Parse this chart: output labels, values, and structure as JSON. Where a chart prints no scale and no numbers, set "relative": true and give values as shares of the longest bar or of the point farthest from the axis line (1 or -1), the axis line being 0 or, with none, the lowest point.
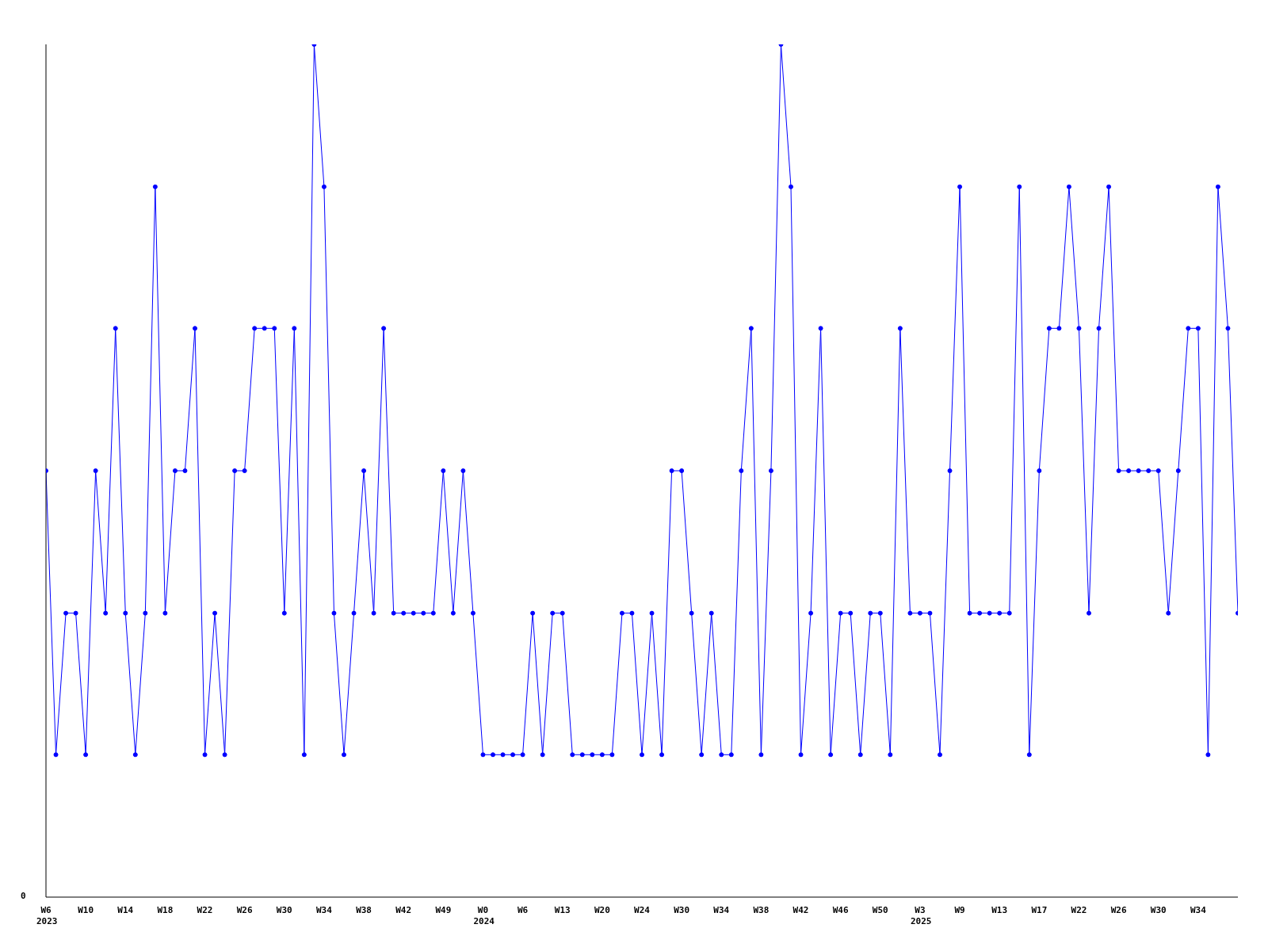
{
  "chart_data": {
    "type": "line",
    "relative": true,
    "color": "#0000ff",
    "marker": "circle",
    "line_style": "solid",
    "grid": false,
    "legend": false,
    "annotations": [
      "0"
    ],
    "categories": [
      "W6\n2023",
      null,
      null,
      null,
      "W10",
      null,
      null,
      null,
      "W14",
      null,
      null,
      null,
      "W18",
      null,
      null,
      null,
      "W22",
      null,
      null,
      null,
      "W26",
      null,
      null,
      null,
      "W30",
      null,
      null,
      null,
      "W34",
      null,
      null,
      null,
      "W38",
      null,
      null,
      null,
      "W42",
      null,
      null,
      null,
      "W49",
      null,
      null,
      null,
      "W0\n2024",
      null,
      null,
      null,
      "W6",
      null,
      null,
      null,
      "W13",
      null,
      null,
      null,
      "W20",
      null,
      null,
      null,
      "W24",
      null,
      null,
      null,
      "W30",
      null,
      null,
      null,
      "W34",
      null,
      null,
      null,
      "W38",
      null,
      null,
      null,
      "W42",
      null,
      null,
      null,
      "W46",
      null,
      null,
      null,
      "W50",
      null,
      null,
      null,
      "W3\n2025",
      null,
      null,
      null,
      "W9",
      null,
      null,
      null,
      "W13",
      null,
      null,
      null,
      "W17",
      null,
      null,
      null,
      "W22",
      null,
      null,
      null,
      "W26",
      null,
      null,
      null,
      "W30",
      null,
      null,
      null,
      "W34",
      null,
      null,
      null,
      null
    ],
    "values": [
      0.5,
      0.167,
      0.333,
      0.333,
      0.167,
      0.5,
      0.333,
      0.667,
      0.333,
      0.167,
      0.333,
      0.833,
      0.333,
      0.5,
      0.5,
      0.667,
      0.167,
      0.333,
      0.167,
      0.5,
      0.5,
      0.667,
      0.667,
      0.667,
      0.333,
      0.667,
      0.167,
      1,
      0.833,
      0.333,
      0.167,
      0.333,
      0.5,
      0.333,
      0.667,
      0.333,
      0.333,
      0.333,
      0.333,
      0.333,
      0.5,
      0.333,
      0.5,
      0.333,
      0.167,
      0.167,
      0.167,
      0.167,
      0.167,
      0.333,
      0.167,
      0.333,
      0.333,
      0.167,
      0.167,
      0.167,
      0.167,
      0.167,
      0.333,
      0.333,
      0.167,
      0.333,
      0.167,
      0.5,
      0.5,
      0.333,
      0.167,
      0.333,
      0.167,
      0.167,
      0.5,
      0.667,
      0.167,
      0.5,
      1,
      0.833,
      0.167,
      0.333,
      0.667,
      0.167,
      0.333,
      0.333,
      0.167,
      0.333,
      0.333,
      0.167,
      0.667,
      0.333,
      0.333,
      0.333,
      0.167,
      0.5,
      0.833,
      0.333,
      0.333,
      0.333,
      0.333,
      0.333,
      0.833,
      0.167,
      0.5,
      0.667,
      0.667,
      0.833,
      0.667,
      0.333,
      0.667,
      0.833,
      0.5,
      0.5,
      0.5,
      0.5,
      0.5,
      0.333,
      0.5,
      0.667,
      0.667,
      0.167,
      0.833,
      0.667,
      0.333
    ]
  }
}
